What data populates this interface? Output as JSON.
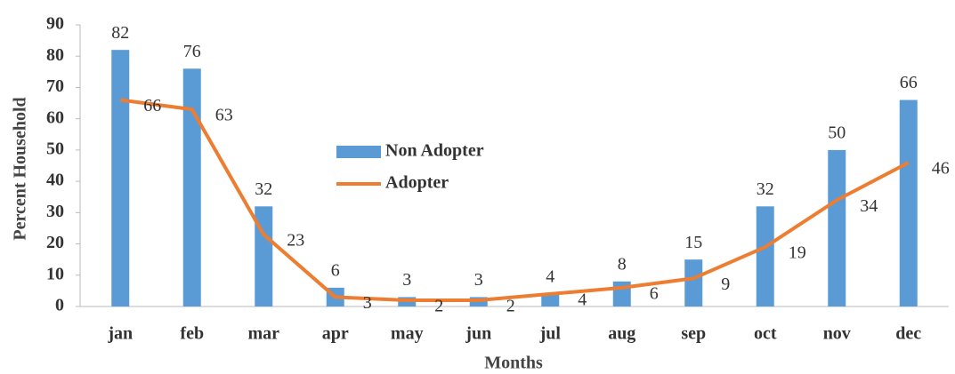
{
  "chart_data": {
    "type": "bar_line",
    "x_label": "Months",
    "y_label": "Percent Household",
    "categories": [
      "jan",
      "feb",
      "mar",
      "apr",
      "may",
      "jun",
      "jul",
      "aug",
      "sep",
      "oct",
      "nov",
      "dec"
    ],
    "series": [
      {
        "name": "Non Adopter",
        "type": "bar",
        "color": "#5b9bd5",
        "values": [
          82,
          76,
          32,
          6,
          3,
          3,
          4,
          8,
          15,
          32,
          50,
          66
        ]
      },
      {
        "name": "Adopter",
        "type": "line",
        "color": "#ed7d31",
        "values": [
          66,
          63,
          23,
          3,
          2,
          2,
          4,
          6,
          9,
          19,
          34,
          46
        ]
      }
    ],
    "ylim": [
      0,
      90
    ],
    "yticks": [
      0,
      10,
      20,
      30,
      40,
      50,
      60,
      70,
      80,
      90
    ],
    "grid": false,
    "legend": "center"
  }
}
